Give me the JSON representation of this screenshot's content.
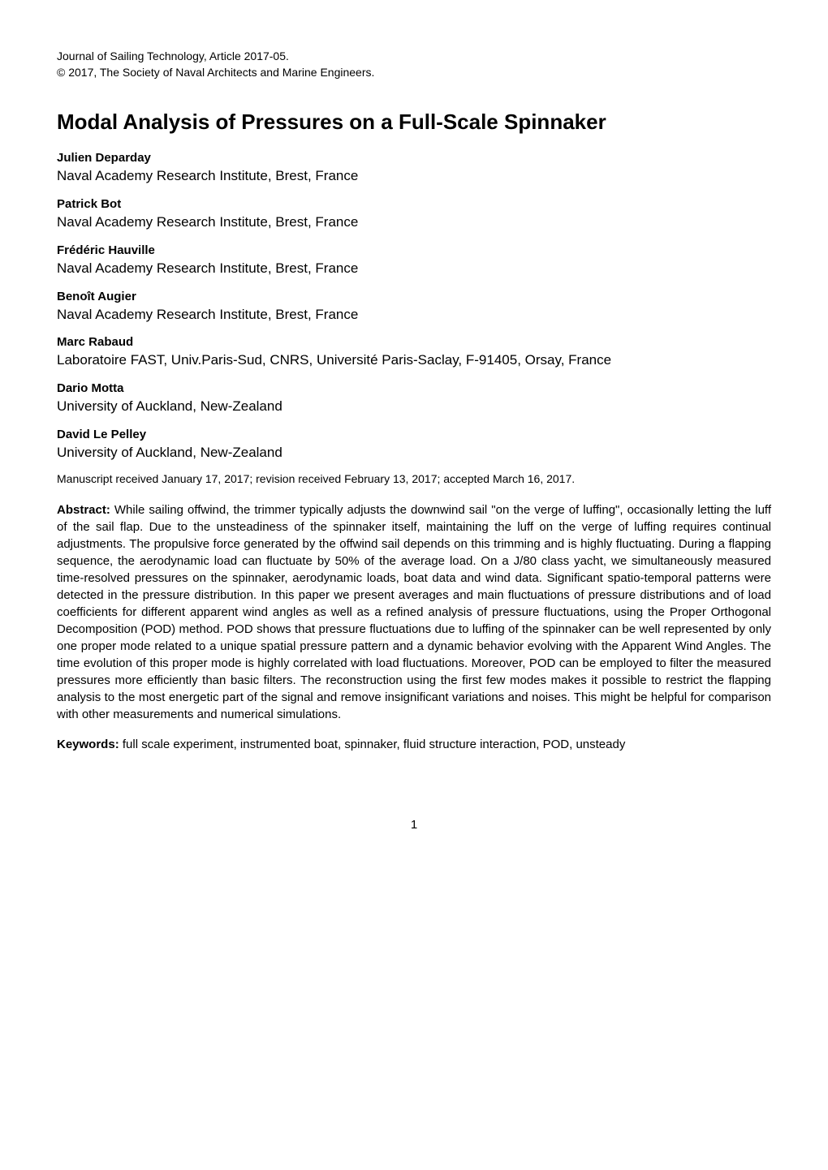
{
  "journal": {
    "line1": "Journal of Sailing Technology, Article 2017-05.",
    "line2": "© 2017, The Society of Naval Architects and Marine Engineers."
  },
  "title": "Modal Analysis of Pressures on a Full-Scale Spinnaker",
  "authors": [
    {
      "name": "Julien Deparday",
      "affiliation": "Naval Academy Research Institute, Brest, France"
    },
    {
      "name": "Patrick Bot",
      "affiliation": "Naval Academy Research Institute, Brest, France"
    },
    {
      "name": "Frédéric Hauville",
      "affiliation": "Naval Academy Research Institute, Brest, France"
    },
    {
      "name": "Benoît Augier",
      "affiliation": "Naval Academy Research Institute, Brest, France"
    },
    {
      "name": "Marc Rabaud",
      "affiliation": "Laboratoire FAST, Univ.Paris-Sud, CNRS, Université Paris-Saclay, F-91405, Orsay, France"
    },
    {
      "name": "Dario Motta",
      "affiliation": "University of Auckland, New-Zealand"
    },
    {
      "name": "David Le Pelley",
      "affiliation": "University of Auckland, New-Zealand"
    }
  ],
  "manuscript_info": "Manuscript received January 17, 2017; revision received February 13, 2017; accepted March 16, 2017.",
  "abstract": {
    "label": "Abstract:",
    "text": " While sailing offwind, the trimmer typically adjusts the downwind sail \"on the verge of luffing\", occasionally letting the luff of the sail flap. Due to the unsteadiness of the spinnaker itself, maintaining the luff on the verge of luffing requires continual adjustments. The propulsive force generated by the offwind sail depends on this trimming and is highly fluctuating. During a flapping sequence, the aerodynamic load can fluctuate by 50% of the average load. On a J/80 class yacht, we simultaneously measured time-resolved pressures on the spinnaker, aerodynamic loads, boat data and wind data. Significant spatio-temporal patterns were detected in the pressure distribution. In this paper we present averages and main fluctuations of pressure distributions and of load coefficients for different apparent wind angles as well as a refined analysis of pressure fluctuations, using the Proper Orthogonal Decomposition (POD) method. POD shows that pressure fluctuations due to luffing of the spinnaker can be well represented by only one proper mode related to a unique spatial pressure pattern and a dynamic behavior evolving with the Apparent Wind Angles. The time evolution of this proper mode is highly correlated with load fluctuations. Moreover, POD can be employed to filter the measured pressures more efficiently than basic filters. The reconstruction using the first few modes makes it possible to restrict the flapping analysis to the most energetic part of the signal and remove insignificant variations and noises. This might be helpful for comparison with other measurements and numerical simulations."
  },
  "keywords": {
    "label": "Keywords:",
    "text": " full scale experiment, instrumented boat, spinnaker, fluid structure interaction, POD, unsteady"
  },
  "page_number": "1"
}
